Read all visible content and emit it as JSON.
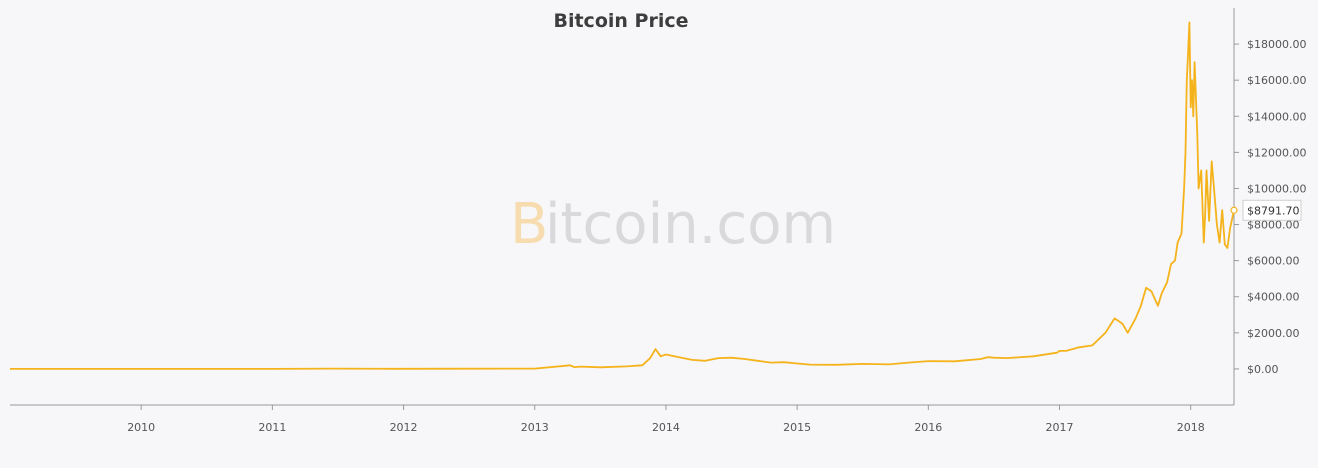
{
  "chart_data": {
    "type": "line",
    "title": "Bitcoin Price",
    "watermark": {
      "initial": "B",
      "rest": "itcoin.com"
    },
    "line_color": "#f5b31b",
    "xlim": [
      2009.0,
      2018.33
    ],
    "ylim": [
      -2000,
      20000
    ],
    "x_ticks": [
      2010,
      2011,
      2012,
      2013,
      2014,
      2015,
      2016,
      2017,
      2018
    ],
    "x_tick_labels": [
      "2010",
      "2011",
      "2012",
      "2013",
      "2014",
      "2015",
      "2016",
      "2017",
      "2018"
    ],
    "y_ticks": [
      0,
      2000,
      4000,
      6000,
      8000,
      10000,
      12000,
      14000,
      16000,
      18000
    ],
    "y_tick_labels": [
      "$0.00",
      "$2000.00",
      "$4000.00",
      "$6000.00",
      "$8000.00",
      "$10000.00",
      "$12000.00",
      "$14000.00",
      "$16000.00",
      "$18000.00"
    ],
    "tooltip": {
      "label": "$8791.70",
      "x": 2018.33,
      "y": 8791.7
    },
    "series": [
      {
        "x": [
          2009.0,
          2010.0,
          2010.5,
          2011.0,
          2011.45,
          2011.9,
          2012.5,
          2013.0,
          2013.27,
          2013.3,
          2013.35,
          2013.5,
          2013.7,
          2013.82,
          2013.88,
          2013.92,
          2013.96,
          2014.0,
          2014.1,
          2014.2,
          2014.3,
          2014.4,
          2014.5,
          2014.6,
          2014.7,
          2014.8,
          2014.9,
          2015.0,
          2015.1,
          2015.3,
          2015.5,
          2015.7,
          2015.85,
          2016.0,
          2016.2,
          2016.4,
          2016.45,
          2016.5,
          2016.6,
          2016.8,
          2016.98,
          2017.0,
          2017.05,
          2017.15,
          2017.25,
          2017.35,
          2017.42,
          2017.48,
          2017.52,
          2017.58,
          2017.62,
          2017.66,
          2017.7,
          2017.75,
          2017.78,
          2017.82,
          2017.85,
          2017.88,
          2017.9,
          2017.93,
          2017.95,
          2017.96,
          2017.97,
          2017.98,
          2017.99,
          2018.0,
          2018.01,
          2018.02,
          2018.03,
          2018.05,
          2018.06,
          2018.08,
          2018.1,
          2018.11,
          2018.12,
          2018.14,
          2018.16,
          2018.18,
          2018.2,
          2018.22,
          2018.24,
          2018.26,
          2018.28,
          2018.3,
          2018.33
        ],
        "y": [
          0,
          0,
          0,
          0,
          15,
          5,
          10,
          15,
          200,
          100,
          130,
          90,
          140,
          200,
          600,
          1100,
          700,
          800,
          650,
          500,
          450,
          600,
          620,
          550,
          450,
          350,
          370,
          300,
          240,
          230,
          280,
          250,
          350,
          430,
          420,
          550,
          650,
          620,
          600,
          700,
          900,
          1000,
          1000,
          1200,
          1300,
          2000,
          2800,
          2500,
          2000,
          2800,
          3500,
          4500,
          4300,
          3500,
          4200,
          4800,
          5800,
          6000,
          7000,
          7500,
          10000,
          12000,
          16000,
          17500,
          19200,
          14500,
          16000,
          14000,
          17000,
          13000,
          10000,
          11000,
          7000,
          8500,
          11000,
          8200,
          11500,
          9800,
          8000,
          7000,
          8800,
          6900,
          6700,
          7800,
          8791.7
        ]
      }
    ]
  }
}
